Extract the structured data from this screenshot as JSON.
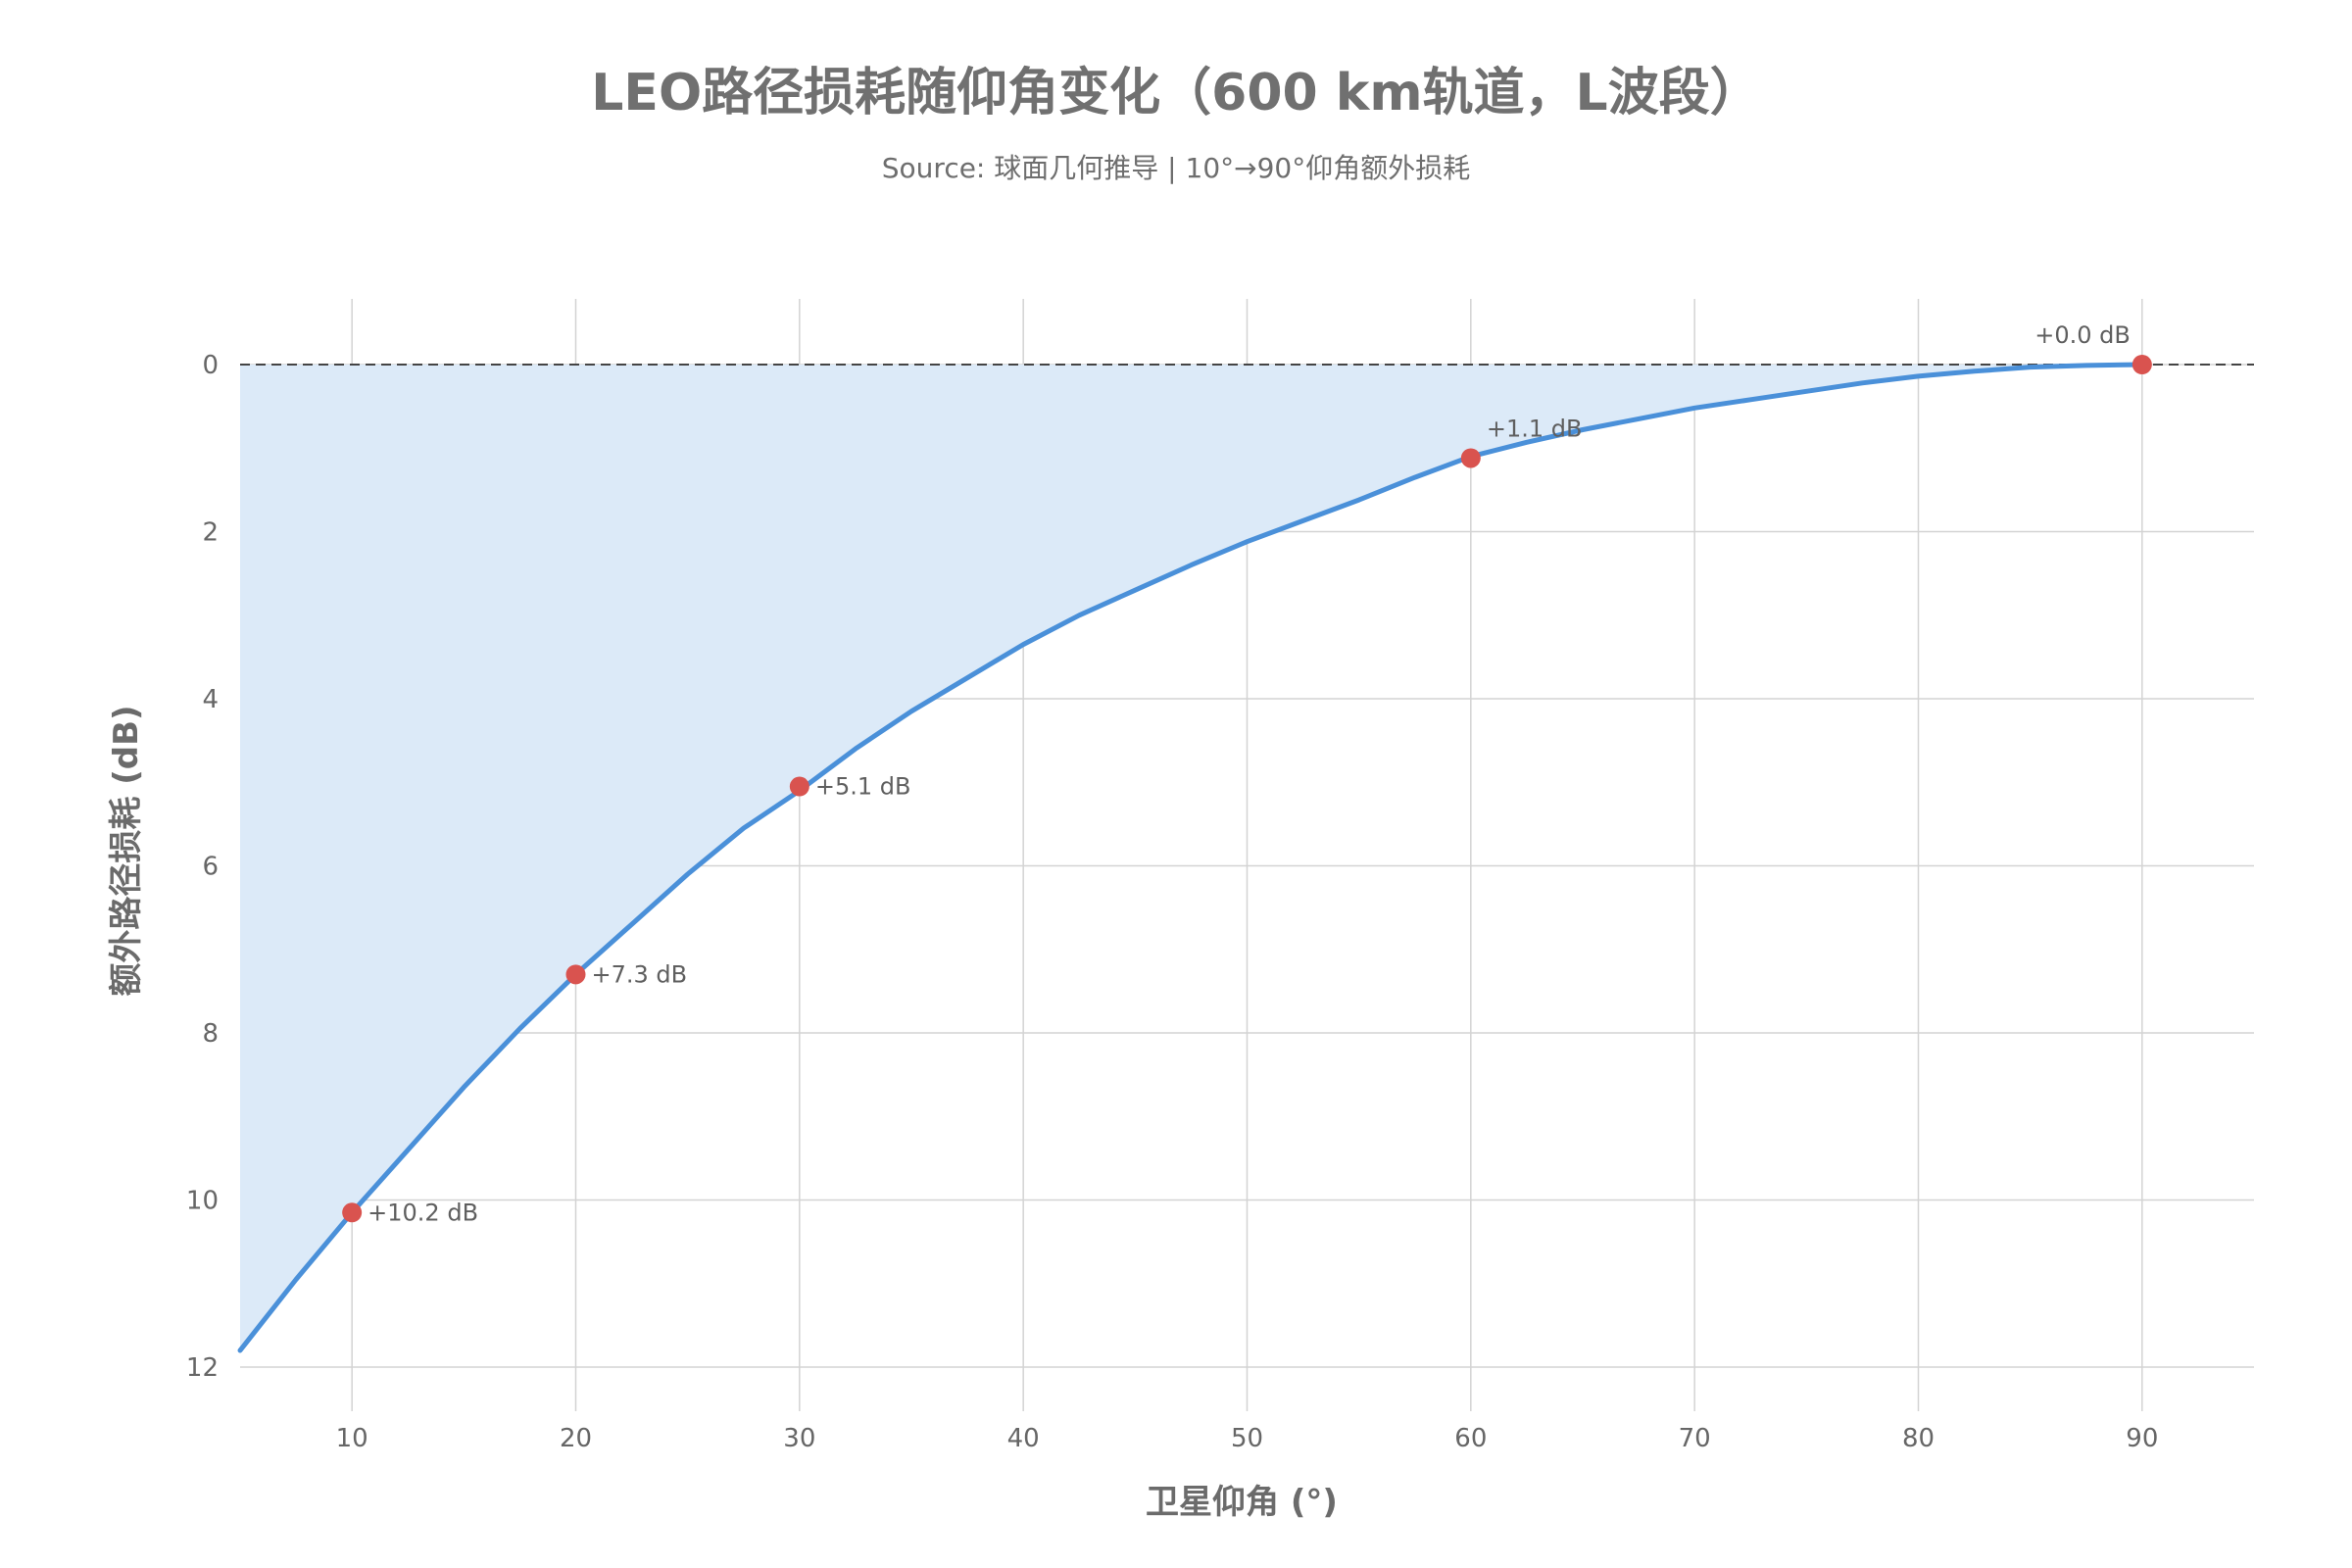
{
  "chart_data": {
    "type": "area",
    "title": "LEO路径损耗随仰角变化（600 km轨道，L波段）",
    "subtitle": "Source: 球面几何推导 | 10°→90°仰角额外损耗",
    "xlabel": "卫星仰角 (°)",
    "ylabel": "额外路径损耗 (dB)",
    "xlim": [
      5,
      95
    ],
    "ylim": [
      0,
      12.3
    ],
    "y_inverted": true,
    "grid": true,
    "x_ticks": [
      10,
      20,
      30,
      40,
      50,
      60,
      70,
      80,
      90
    ],
    "y_ticks": [
      0,
      2,
      4,
      6,
      8,
      10,
      12
    ],
    "reference_line": {
      "y": 0,
      "style": "dashed"
    },
    "x": [
      5,
      7.5,
      10,
      12.5,
      15,
      17.5,
      20,
      22.5,
      25,
      27.5,
      30,
      32.5,
      35,
      37.5,
      40,
      42.5,
      45,
      47.5,
      50,
      52.5,
      55,
      57.5,
      60,
      62.5,
      65,
      67.5,
      70,
      72.5,
      75,
      77.5,
      80,
      82.5,
      85,
      87.5,
      90
    ],
    "series": [
      {
        "values": [
          11.8,
          10.95,
          10.15,
          9.4,
          8.65,
          7.95,
          7.3,
          6.7,
          6.1,
          5.55,
          5.1,
          4.6,
          4.15,
          3.75,
          3.35,
          3.0,
          2.7,
          2.4,
          2.12,
          1.87,
          1.62,
          1.35,
          1.1,
          0.93,
          0.78,
          0.65,
          0.52,
          0.42,
          0.32,
          0.22,
          0.14,
          0.08,
          0.03,
          0.01,
          0.0
        ],
        "color": "#4a90d9",
        "fill_color": "#dceaf8"
      }
    ],
    "highlighted_points": [
      {
        "x": 10,
        "y": 10.15,
        "label": "+10.2 dB"
      },
      {
        "x": 20,
        "y": 7.3,
        "label": "+7.3 dB"
      },
      {
        "x": 30,
        "y": 5.05,
        "label": "+5.1 dB"
      },
      {
        "x": 60,
        "y": 1.12,
        "label": "+1.1 dB"
      },
      {
        "x": 90,
        "y": 0.0,
        "label": "+0.0 dB"
      }
    ],
    "point_color": "#d9534f"
  }
}
